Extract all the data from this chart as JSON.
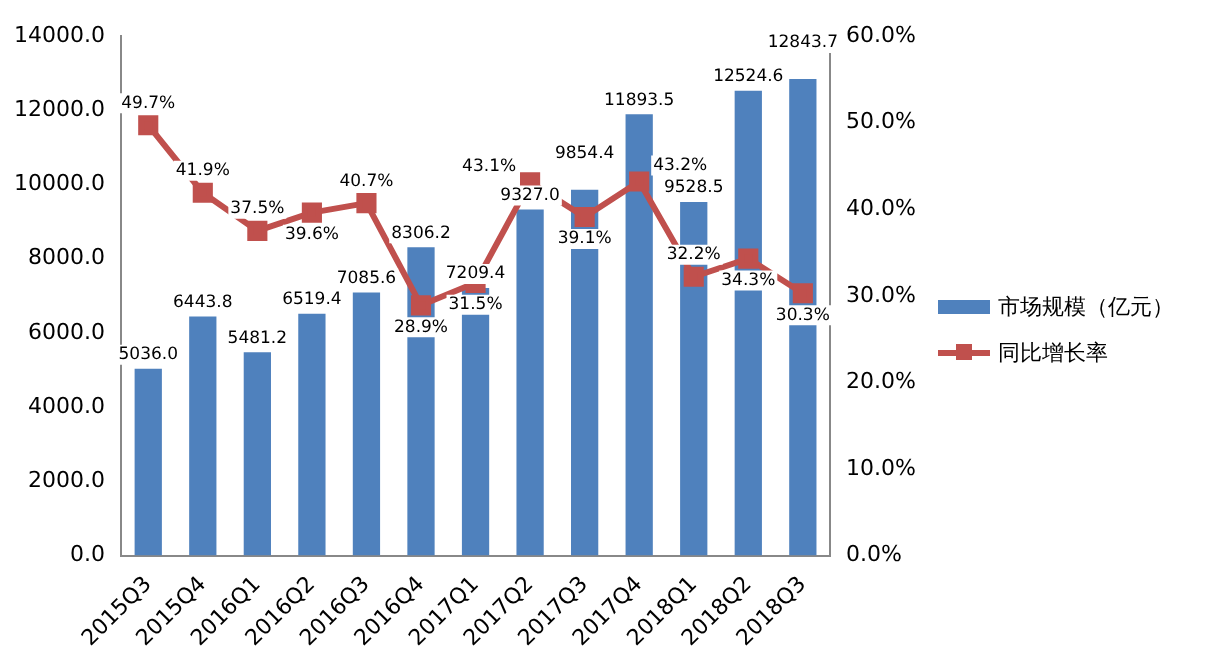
{
  "chart_data": {
    "type": "bar",
    "categories": [
      "2015Q3",
      "2015Q4",
      "2016Q1",
      "2016Q2",
      "2016Q3",
      "2016Q4",
      "2017Q1",
      "2017Q2",
      "2017Q3",
      "2017Q4",
      "2018Q1",
      "2018Q2",
      "2018Q3"
    ],
    "series": [
      {
        "name": "市场规模（亿元）",
        "type": "bar",
        "color": "#4f81bd",
        "values": [
          5036.0,
          6443.8,
          5481.2,
          6519.4,
          7085.6,
          8306.2,
          7209.4,
          9327.0,
          9854.4,
          11893.5,
          9528.5,
          12524.6,
          12843.7
        ],
        "value_labels": [
          "5036.0",
          "6443.8",
          "5481.2",
          "6519.4",
          "7085.6",
          "8306.2",
          "7209.4",
          "9327.0",
          "9854.4",
          "11893.5",
          "9528.5",
          "12524.6",
          "12843.7"
        ]
      },
      {
        "name": "同比增长率",
        "type": "line",
        "axis": "y2",
        "color": "#c0504d",
        "marker": "square",
        "values": [
          49.7,
          41.9,
          37.5,
          39.6,
          40.7,
          28.9,
          31.5,
          43.1,
          39.1,
          43.2,
          32.2,
          34.3,
          30.3
        ],
        "value_labels": [
          "49.7%",
          "41.9%",
          "37.5%",
          "39.6%",
          "40.7%",
          "28.9%",
          "31.5%",
          "43.1%",
          "39.1%",
          "43.2%",
          "32.2%",
          "34.3%",
          "30.3%"
        ]
      }
    ],
    "ylim": [
      0,
      14000
    ],
    "yticks": [
      {
        "value": 0,
        "label": "0.0"
      },
      {
        "value": 2000,
        "label": "2000.0"
      },
      {
        "value": 4000,
        "label": "4000.0"
      },
      {
        "value": 6000,
        "label": "6000.0"
      },
      {
        "value": 8000,
        "label": "8000.0"
      },
      {
        "value": 10000,
        "label": "10000.0"
      },
      {
        "value": 12000,
        "label": "12000.0"
      },
      {
        "value": 14000,
        "label": "14000.0"
      }
    ],
    "y2lim": [
      0,
      60
    ],
    "y2ticks": [
      {
        "value": 0,
        "label": "0.0%"
      },
      {
        "value": 10,
        "label": "10.0%"
      },
      {
        "value": 20,
        "label": "20.0%"
      },
      {
        "value": 30,
        "label": "30.0%"
      },
      {
        "value": 40,
        "label": "40.0%"
      },
      {
        "value": 50,
        "label": "50.0%"
      },
      {
        "value": 60,
        "label": "60.0%"
      }
    ],
    "grid": false,
    "legend": "right"
  }
}
